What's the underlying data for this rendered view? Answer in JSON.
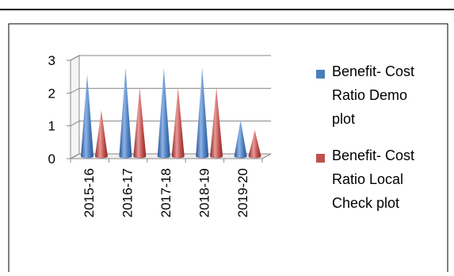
{
  "chart_data": {
    "type": "bar",
    "categories": [
      "2015-16",
      "2016-17",
      "2017-18",
      "2018-19",
      "2019-20"
    ],
    "series": [
      {
        "name": "Benefit- Cost Ratio  Demo plot",
        "values": [
          2.5,
          2.7,
          2.7,
          2.7,
          1.1
        ],
        "color": "#4a7ebb"
      },
      {
        "name": "Benefit- Cost Ratio  Local Check plot",
        "values": [
          1.4,
          2.1,
          2.1,
          2.1,
          0.8
        ],
        "color": "#c0504d"
      }
    ],
    "ylim": [
      0,
      3
    ],
    "yticks": [
      "0",
      "1",
      "2",
      "3"
    ],
    "legend_lines": [
      [
        "Benefit- Cost",
        "Ratio  Demo",
        "plot"
      ],
      [
        "Benefit- Cost",
        "Ratio  Local",
        "Check plot"
      ]
    ],
    "legend_position": "right",
    "grid": true,
    "style": "3d-cone"
  }
}
